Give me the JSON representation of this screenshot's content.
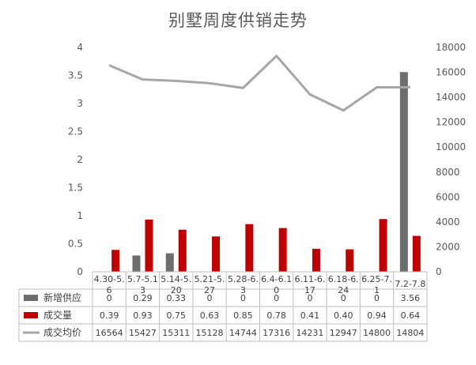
{
  "chart_data": {
    "type": "bar",
    "title": "别墅周度供销走势",
    "categories": [
      "4.30-5.\n6",
      "5.7-5.1\n3",
      "5.14-5.\n20",
      "5.21-5.\n27",
      "5.28-6.\n3",
      "6.4-6.1\n0",
      "6.11-6.\n17",
      "6.18-6.\n24",
      "6.25-7.\n1",
      "7.2-7.8"
    ],
    "series": [
      {
        "name": "新增供应",
        "type": "bar",
        "axis": "left",
        "color": "#6d6d6d",
        "values": [
          0,
          0.29,
          0.33,
          0,
          0,
          0,
          0,
          0,
          0,
          3.56
        ],
        "labels": [
          "0",
          "0.29",
          "0.33",
          "0",
          "0",
          "0",
          "0",
          "0",
          "0",
          "3.56"
        ]
      },
      {
        "name": "成交量",
        "type": "bar",
        "axis": "left",
        "color": "#c00000",
        "values": [
          0.39,
          0.93,
          0.75,
          0.63,
          0.85,
          0.78,
          0.41,
          0.4,
          0.94,
          0.64
        ],
        "labels": [
          "0.39",
          "0.93",
          "0.75",
          "0.63",
          "0.85",
          "0.78",
          "0.41",
          "0.40",
          "0.94",
          "0.64"
        ]
      },
      {
        "name": "成交均价",
        "type": "line",
        "axis": "right",
        "color": "#a6a6a6",
        "values": [
          16564,
          15427,
          15311,
          15128,
          14744,
          17316,
          14231,
          12947,
          14800,
          14804
        ],
        "labels": [
          "16564",
          "15427",
          "15311",
          "15128",
          "14744",
          "17316",
          "14231",
          "12947",
          "14800",
          "14804"
        ]
      }
    ],
    "ylim": [
      0,
      4
    ],
    "y2lim": [
      0,
      18000
    ],
    "yticks": [
      "0",
      "0.5",
      "1",
      "1.5",
      "2",
      "2.5",
      "3",
      "3.5",
      "4"
    ],
    "y2ticks": [
      "0",
      "2000",
      "4000",
      "6000",
      "8000",
      "10000",
      "12000",
      "14000",
      "16000",
      "18000"
    ],
    "grid": false,
    "legend": "data-table"
  }
}
